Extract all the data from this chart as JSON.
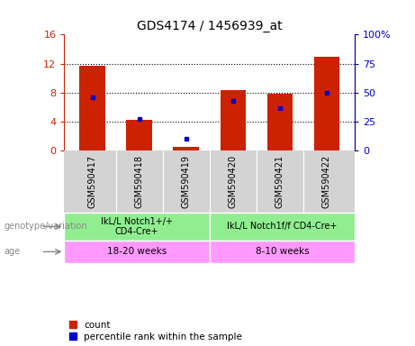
{
  "title": "GDS4174 / 1456939_at",
  "samples": [
    "GSM590417",
    "GSM590418",
    "GSM590419",
    "GSM590420",
    "GSM590421",
    "GSM590422"
  ],
  "counts": [
    11.7,
    4.3,
    0.5,
    8.3,
    7.9,
    13.0
  ],
  "percentile_ranks": [
    46,
    27,
    10,
    43,
    37,
    50
  ],
  "ylim_left": [
    0,
    16
  ],
  "ylim_right": [
    0,
    100
  ],
  "yticks_left": [
    0,
    4,
    8,
    12,
    16
  ],
  "yticks_right": [
    0,
    25,
    50,
    75,
    100
  ],
  "ytick_labels_left": [
    "0",
    "4",
    "8",
    "12",
    "16"
  ],
  "ytick_labels_right": [
    "0",
    "25",
    "50",
    "75",
    "100%"
  ],
  "genotype_groups": [
    {
      "label": "IkL/L Notch1+/+\nCD4-Cre+",
      "start": 0,
      "end": 3,
      "color": "#90EE90"
    },
    {
      "label": "IkL/L Notch1f/f CD4-Cre+",
      "start": 3,
      "end": 6,
      "color": "#90EE90"
    }
  ],
  "age_groups": [
    {
      "label": "18-20 weeks",
      "start": 0,
      "end": 3,
      "color": "#FF99FF"
    },
    {
      "label": "8-10 weeks",
      "start": 3,
      "end": 6,
      "color": "#FF99FF"
    }
  ],
  "bar_color": "#CC2200",
  "dot_color": "#0000CC",
  "bg_color": "#FFFFFF",
  "plot_bg": "#FFFFFF",
  "sample_bg": "#D3D3D3",
  "tick_label_color_left": "#CC2200",
  "tick_label_color_right": "#0000CC",
  "genotype_label": "genotype/variation",
  "age_label": "age",
  "legend_count": "count",
  "legend_percentile": "percentile rank within the sample",
  "grid_yticks": [
    4,
    8,
    12
  ]
}
